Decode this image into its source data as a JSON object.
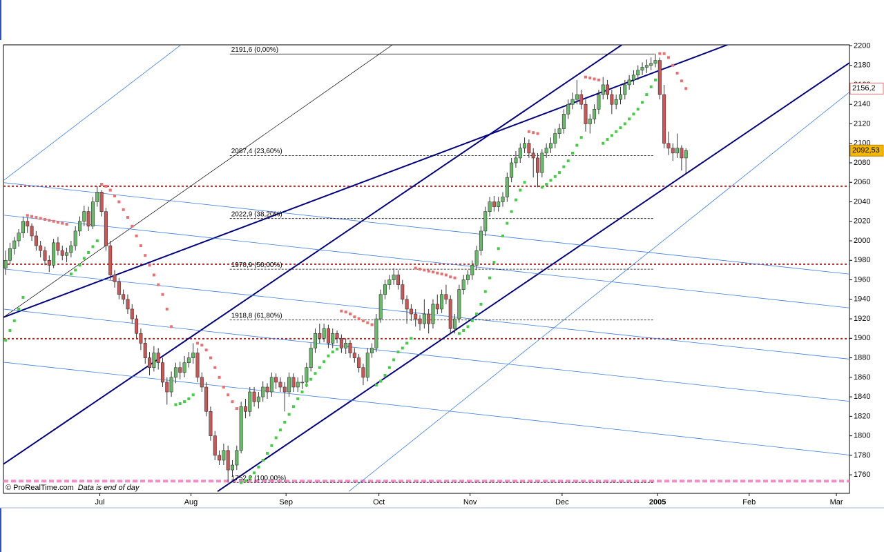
{
  "chart_data": {
    "type": "candlestick",
    "up_color": "#66bb66",
    "down_color": "#cc5555",
    "sar_up_color": "#44cc44",
    "sar_down_color": "#e87070",
    "xlim": [
      -0.5,
      193.5
    ],
    "ylim": [
      1741,
      2201
    ],
    "yticks": [
      1760,
      1780,
      1800,
      1820,
      1840,
      1860,
      1880,
      1900,
      1920,
      1940,
      1960,
      1980,
      2000,
      2020,
      2040,
      2060,
      2080,
      2100,
      2120,
      2140,
      2160,
      2180,
      2200
    ],
    "xticks": [
      {
        "value": 21.6,
        "label": "Jul"
      },
      {
        "value": 42.5,
        "label": "Aug"
      },
      {
        "value": 64.3,
        "label": "Sep"
      },
      {
        "value": 85.6,
        "label": "Oct"
      },
      {
        "value": 106.5,
        "label": "Nov"
      },
      {
        "value": 127.6,
        "label": "Dec"
      },
      {
        "value": 149.5,
        "label": "2005"
      },
      {
        "value": 170.5,
        "label": "Feb"
      },
      {
        "value": 190.5,
        "label": "Mar"
      }
    ],
    "ohlc": [
      [
        1972,
        1990,
        1965,
        1980
      ],
      [
        1980,
        1998,
        1976,
        1992
      ],
      [
        1992,
        2004,
        1986,
        2000
      ],
      [
        2000,
        2012,
        1994,
        2008
      ],
      [
        2008,
        2025,
        2003,
        2020
      ],
      [
        2020,
        2024,
        2008,
        2015
      ],
      [
        2015,
        2018,
        2000,
        2005
      ],
      [
        2005,
        2010,
        1990,
        1995
      ],
      [
        1995,
        2000,
        1983,
        1990
      ],
      [
        1990,
        1994,
        1975,
        1980
      ],
      [
        1980,
        1985,
        1968,
        1975
      ],
      [
        1975,
        2002,
        1972,
        1998
      ],
      [
        1998,
        2004,
        1985,
        1990
      ],
      [
        1990,
        1995,
        1980,
        1985
      ],
      [
        1985,
        1993,
        1978,
        1988
      ],
      [
        1988,
        2000,
        1983,
        1995
      ],
      [
        1995,
        2015,
        1990,
        2010
      ],
      [
        2010,
        2025,
        2005,
        2020
      ],
      [
        2020,
        2036,
        2015,
        2030
      ],
      [
        2030,
        2035,
        2010,
        2015
      ],
      [
        2015,
        2045,
        2012,
        2040
      ],
      [
        2040,
        2056,
        2035,
        2050
      ],
      [
        2050,
        2052,
        2025,
        2030
      ],
      [
        2030,
        2034,
        1990,
        1995
      ],
      [
        1995,
        2000,
        1960,
        1965
      ],
      [
        1965,
        1970,
        1952,
        1958
      ],
      [
        1958,
        1962,
        1940,
        1945
      ],
      [
        1945,
        1950,
        1935,
        1940
      ],
      [
        1940,
        1945,
        1925,
        1930
      ],
      [
        1930,
        1935,
        1915,
        1920
      ],
      [
        1920,
        1924,
        1900,
        1905
      ],
      [
        1905,
        1910,
        1888,
        1895
      ],
      [
        1895,
        1900,
        1874,
        1880
      ],
      [
        1880,
        1886,
        1862,
        1870
      ],
      [
        1870,
        1892,
        1866,
        1885
      ],
      [
        1885,
        1890,
        1868,
        1875
      ],
      [
        1875,
        1880,
        1850,
        1855
      ],
      [
        1855,
        1860,
        1832,
        1845
      ],
      [
        1845,
        1866,
        1840,
        1860
      ],
      [
        1860,
        1875,
        1854,
        1870
      ],
      [
        1870,
        1876,
        1858,
        1865
      ],
      [
        1865,
        1882,
        1860,
        1875
      ],
      [
        1875,
        1886,
        1870,
        1880
      ],
      [
        1880,
        1895,
        1874,
        1885
      ],
      [
        1885,
        1890,
        1855,
        1860
      ],
      [
        1860,
        1865,
        1845,
        1850
      ],
      [
        1850,
        1855,
        1820,
        1825
      ],
      [
        1825,
        1830,
        1795,
        1800
      ],
      [
        1800,
        1805,
        1775,
        1780
      ],
      [
        1780,
        1785,
        1770,
        1775
      ],
      [
        1775,
        1792,
        1770,
        1785
      ],
      [
        1785,
        1790,
        1752,
        1765
      ],
      [
        1765,
        1775,
        1758,
        1770
      ],
      [
        1770,
        1790,
        1765,
        1785
      ],
      [
        1785,
        1835,
        1782,
        1830
      ],
      [
        1830,
        1838,
        1818,
        1825
      ],
      [
        1825,
        1850,
        1820,
        1845
      ],
      [
        1845,
        1850,
        1830,
        1835
      ],
      [
        1835,
        1845,
        1828,
        1840
      ],
      [
        1840,
        1856,
        1835,
        1850
      ],
      [
        1850,
        1854,
        1838,
        1845
      ],
      [
        1845,
        1865,
        1840,
        1860
      ],
      [
        1860,
        1864,
        1848,
        1855
      ],
      [
        1855,
        1860,
        1845,
        1850
      ],
      [
        1850,
        1855,
        1825,
        1845
      ],
      [
        1845,
        1865,
        1840,
        1860
      ],
      [
        1860,
        1864,
        1845,
        1850
      ],
      [
        1850,
        1860,
        1845,
        1855
      ],
      [
        1855,
        1862,
        1848,
        1855
      ],
      [
        1855,
        1875,
        1850,
        1870
      ],
      [
        1870,
        1895,
        1866,
        1890
      ],
      [
        1890,
        1910,
        1885,
        1905
      ],
      [
        1905,
        1915,
        1895,
        1900
      ],
      [
        1900,
        1915,
        1896,
        1910
      ],
      [
        1910,
        1914,
        1890,
        1895
      ],
      [
        1895,
        1910,
        1890,
        1905
      ],
      [
        1905,
        1908,
        1895,
        1900
      ],
      [
        1900,
        1904,
        1885,
        1890
      ],
      [
        1890,
        1900,
        1884,
        1895
      ],
      [
        1895,
        1898,
        1880,
        1885
      ],
      [
        1885,
        1890,
        1875,
        1880
      ],
      [
        1880,
        1884,
        1865,
        1870
      ],
      [
        1870,
        1874,
        1852,
        1860
      ],
      [
        1860,
        1890,
        1856,
        1885
      ],
      [
        1885,
        1895,
        1880,
        1890
      ],
      [
        1890,
        1925,
        1886,
        1920
      ],
      [
        1920,
        1950,
        1916,
        1945
      ],
      [
        1945,
        1960,
        1940,
        1955
      ],
      [
        1955,
        1965,
        1950,
        1960
      ],
      [
        1960,
        1972,
        1955,
        1965
      ],
      [
        1965,
        1970,
        1950,
        1955
      ],
      [
        1955,
        1960,
        1935,
        1940
      ],
      [
        1940,
        1944,
        1915,
        1930
      ],
      [
        1930,
        1935,
        1918,
        1925
      ],
      [
        1925,
        1930,
        1912,
        1920
      ],
      [
        1920,
        1924,
        1908,
        1915
      ],
      [
        1915,
        1940,
        1910,
        1925
      ],
      [
        1925,
        1930,
        1905,
        1915
      ],
      [
        1915,
        1940,
        1910,
        1935
      ],
      [
        1935,
        1945,
        1925,
        1930
      ],
      [
        1930,
        1950,
        1926,
        1945
      ],
      [
        1945,
        1955,
        1935,
        1940
      ],
      [
        1940,
        1944,
        1905,
        1910
      ],
      [
        1910,
        1925,
        1905,
        1920
      ],
      [
        1920,
        1955,
        1916,
        1950
      ],
      [
        1950,
        1965,
        1945,
        1960
      ],
      [
        1960,
        1970,
        1955,
        1965
      ],
      [
        1965,
        1980,
        1960,
        1975
      ],
      [
        1975,
        1995,
        1970,
        1990
      ],
      [
        1990,
        2015,
        1985,
        2010
      ],
      [
        2010,
        2035,
        2005,
        2030
      ],
      [
        2030,
        2045,
        2025,
        2040
      ],
      [
        2040,
        2046,
        2030,
        2035
      ],
      [
        2035,
        2045,
        2030,
        2040
      ],
      [
        2040,
        2050,
        2035,
        2045
      ],
      [
        2045,
        2070,
        2040,
        2065
      ],
      [
        2065,
        2085,
        2060,
        2080
      ],
      [
        2080,
        2092,
        2075,
        2085
      ],
      [
        2085,
        2100,
        2080,
        2095
      ],
      [
        2095,
        2106,
        2090,
        2100
      ],
      [
        2100,
        2104,
        2085,
        2090
      ],
      [
        2090,
        2095,
        2065,
        2085
      ],
      [
        2085,
        2090,
        2055,
        2070
      ],
      [
        2070,
        2094,
        2065,
        2090
      ],
      [
        2090,
        2100,
        2085,
        2095
      ],
      [
        2095,
        2106,
        2090,
        2100
      ],
      [
        2100,
        2115,
        2095,
        2110
      ],
      [
        2110,
        2120,
        2105,
        2115
      ],
      [
        2115,
        2135,
        2110,
        2130
      ],
      [
        2130,
        2145,
        2125,
        2140
      ],
      [
        2140,
        2152,
        2135,
        2145
      ],
      [
        2145,
        2165,
        2140,
        2150
      ],
      [
        2150,
        2155,
        2135,
        2140
      ],
      [
        2140,
        2145,
        2112,
        2120
      ],
      [
        2120,
        2130,
        2110,
        2125
      ],
      [
        2125,
        2140,
        2120,
        2135
      ],
      [
        2135,
        2155,
        2130,
        2150
      ],
      [
        2150,
        2168,
        2145,
        2160
      ],
      [
        2160,
        2165,
        2145,
        2150
      ],
      [
        2150,
        2155,
        2130,
        2140
      ],
      [
        2140,
        2150,
        2135,
        2145
      ],
      [
        2145,
        2158,
        2140,
        2150
      ],
      [
        2150,
        2165,
        2145,
        2160
      ],
      [
        2160,
        2170,
        2155,
        2165
      ],
      [
        2165,
        2175,
        2160,
        2170
      ],
      [
        2170,
        2180,
        2165,
        2175
      ],
      [
        2175,
        2183,
        2170,
        2178
      ],
      [
        2178,
        2186,
        2172,
        2180
      ],
      [
        2180,
        2188,
        2175,
        2182
      ],
      [
        2182,
        2192,
        2178,
        2185
      ],
      [
        2185,
        2188,
        2145,
        2150
      ],
      [
        2150,
        2160,
        2095,
        2100
      ],
      [
        2100,
        2112,
        2088,
        2095
      ],
      [
        2095,
        2100,
        2082,
        2090
      ],
      [
        2090,
        2110,
        2085,
        2095
      ],
      [
        2095,
        2098,
        2072,
        2085
      ],
      [
        2085,
        2095,
        2068,
        2092.53
      ]
    ],
    "sar": [
      1898,
      1908,
      1918,
      1930,
      1942,
      2026,
      2025,
      2024,
      2023,
      2022,
      2021,
      2020,
      2019,
      2018,
      2017,
      1966,
      1970,
      1975,
      1982,
      1988,
      1994,
      2000,
      2058,
      2056,
      2052,
      2046,
      2040,
      2032,
      2024,
      2015,
      2005,
      1995,
      1985,
      1975,
      1965,
      1955,
      1945,
      1930,
      1912,
      1832,
      1833,
      1835,
      1838,
      1842,
      1895,
      1893,
      1888,
      1880,
      1870,
      1860,
      1850,
      1842,
      1835,
      1828,
      1752,
      1754,
      1757,
      1762,
      1768,
      1775,
      1782,
      1790,
      1798,
      1806,
      1814,
      1822,
      1830,
      1838,
      1845,
      1852,
      1858,
      1864,
      1870,
      1876,
      1882,
      1886,
      1889,
      1928,
      1927,
      1925,
      1922,
      1920,
      1918,
      1916,
      1914,
      1852,
      1856,
      1862,
      1870,
      1878,
      1886,
      1890,
      1895,
      1900,
      1972,
      1971,
      1970,
      1969,
      1968,
      1967,
      1966,
      1965,
      1963,
      1962,
      1905,
      1908,
      1912,
      1918,
      1925,
      1935,
      1948,
      1962,
      1978,
      1992,
      2005,
      2018,
      2030,
      2042,
      2052,
      2060,
      2112,
      2111,
      2110,
      2055,
      2058,
      2062,
      2066,
      2070,
      2076,
      2082,
      2090,
      2098,
      2106,
      2168,
      2167,
      2166,
      2165,
      2100,
      2104,
      2108,
      2112,
      2116,
      2120,
      2125,
      2130,
      2135,
      2142,
      2150,
      2158,
      2165,
      2192,
      2192,
      2188,
      2180,
      2172,
      2164,
      2156.2
    ],
    "lines": [
      {
        "style": "channel",
        "x": [
          -0.5,
          141.3
        ],
        "y": [
          1771,
          2201
        ]
      },
      {
        "style": "channel",
        "x": [
          -0.5,
          165.5
        ],
        "y": [
          1921.6,
          2201
        ]
      },
      {
        "style": "channel",
        "x": [
          48.6,
          194.3
        ],
        "y": [
          1743,
          2185
        ]
      },
      {
        "style": "thin",
        "x": [
          -0.5,
          40.2
        ],
        "y": [
          2061.8,
          2201
        ]
      },
      {
        "style": "thin",
        "x": [
          78.7,
          194.3
        ],
        "y": [
          1743,
          2155.4
        ]
      },
      {
        "style": "black",
        "x": [
          -0.5,
          88.7
        ],
        "y": [
          1921.6,
          2201
        ]
      },
      {
        "style": "thin",
        "x": [
          -0.5,
          194.3
        ],
        "y": [
          2059.7,
          1965.5
        ]
      },
      {
        "style": "thin",
        "x": [
          -0.5,
          194.3
        ],
        "y": [
          2026.4,
          1930.8
        ]
      },
      {
        "style": "thin",
        "x": [
          -0.5,
          194.3
        ],
        "y": [
          1971.2,
          1878.3
        ]
      },
      {
        "style": "thin",
        "x": [
          -0.5,
          194.3
        ],
        "y": [
          1930,
          1835
        ]
      },
      {
        "style": "thin",
        "x": [
          -0.5,
          194.3
        ],
        "y": [
          1875.5,
          1779.9
        ]
      }
    ],
    "levels": [
      {
        "value": 2056,
        "style": "red"
      },
      {
        "value": 1976,
        "style": "red"
      },
      {
        "value": 1899.6,
        "style": "red"
      },
      {
        "value": 1753.6,
        "style": "pink"
      }
    ],
    "fib_range": [
      51.4,
      148.8
    ],
    "fib": [
      {
        "value": 2191.6,
        "label": "2191,6 (0,00%)"
      },
      {
        "value": 2087.4,
        "label": "2087,4 (23,60%)"
      },
      {
        "value": 2022.9,
        "label": "2022,9 (38,20%)"
      },
      {
        "value": 1970.9,
        "label": "1970,9 (50,00%)"
      },
      {
        "value": 1918.8,
        "label": "1918,8 (61,80%)"
      },
      {
        "value": 1752.2,
        "label": "1752,2 (100,00%)"
      }
    ],
    "markers": [
      {
        "value": 2156.2,
        "label": "2156,2",
        "style": "sar"
      },
      {
        "value": 2092.53,
        "label": "2092,53",
        "style": "last"
      }
    ],
    "footer": "© ProRealTime.com",
    "note": "Data is end of day"
  }
}
